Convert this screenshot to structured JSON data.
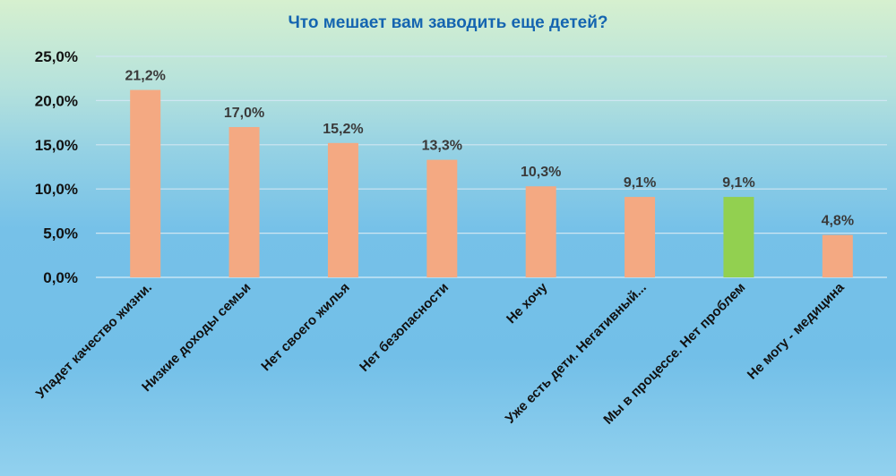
{
  "chart_data": {
    "type": "bar",
    "title": "Что мешает вам заводить еще детей?",
    "xlabel": "",
    "ylabel": "",
    "ylim": [
      0,
      25
    ],
    "yticks": [
      "0,0%",
      "5,0%",
      "10,0%",
      "15,0%",
      "20,0%",
      "25,0%"
    ],
    "ytick_values": [
      0,
      5,
      10,
      15,
      20,
      25
    ],
    "grid": true,
    "categories": [
      "Упадет качество жизни.",
      "Низкие доходы семьи",
      "Нет своего жилья",
      "Нет безопасности",
      "Не хочу",
      "Уже есть дети. Негативный...",
      "Мы в процессе. Нет проблем",
      "Не могу - медицина"
    ],
    "values": [
      21.2,
      17.0,
      15.2,
      13.3,
      10.3,
      9.1,
      9.1,
      4.8
    ],
    "data_labels": [
      "21,2%",
      "17,0%",
      "15,2%",
      "13,3%",
      "10,3%",
      "9,1%",
      "9,1%",
      "4,8%"
    ],
    "bar_colors": [
      "#f4a982",
      "#f4a982",
      "#f4a982",
      "#f4a982",
      "#f4a982",
      "#f4a982",
      "#92d050",
      "#f4a982"
    ]
  }
}
